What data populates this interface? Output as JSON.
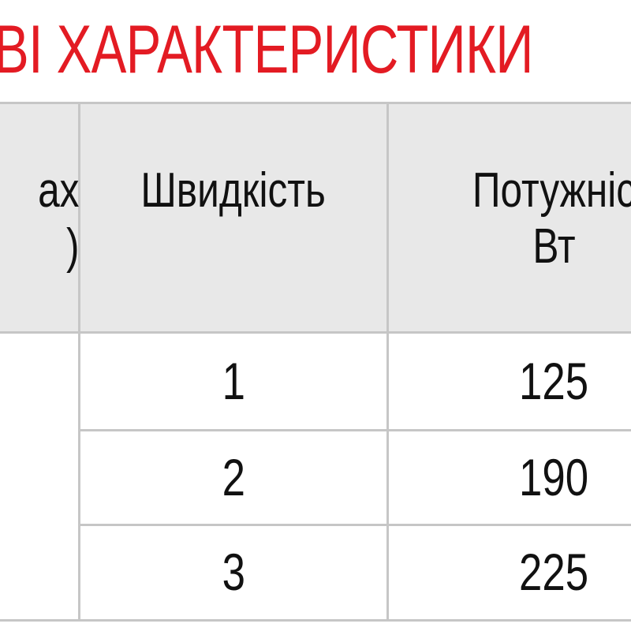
{
  "title": "ВІ ХАРАКТЕРИСТИКИ",
  "table": {
    "headers": [
      {
        "line1": "ах",
        "line2": ")"
      },
      {
        "line1": "Швидкість"
      },
      {
        "line1": "Потужніс",
        "line2": "Вт"
      }
    ],
    "rows": [
      {
        "speed": "1",
        "power": "125"
      },
      {
        "speed": "2",
        "power": "190"
      },
      {
        "speed": "3",
        "power": "225"
      }
    ]
  },
  "colors": {
    "title": "#e31b23",
    "header_bg": "#e8e8e8",
    "grid": "#c6c6c6"
  }
}
